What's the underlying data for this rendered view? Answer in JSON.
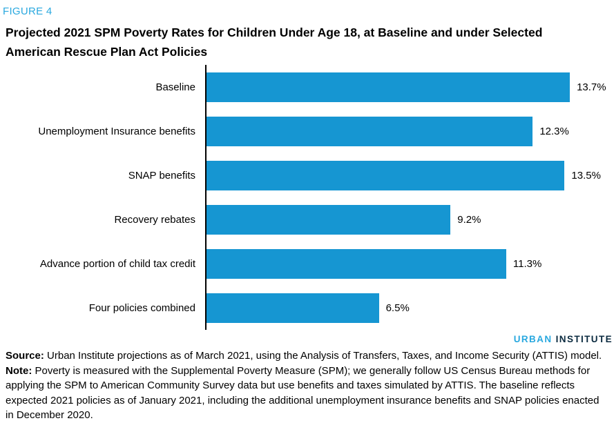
{
  "figure_label": "FIGURE 4",
  "title_lines": [
    "Projected 2021 SPM Poverty Rates for Children Under Age 18, at Baseline and under Selected",
    "American Rescue Plan Act Policies"
  ],
  "chart_data": {
    "type": "bar",
    "orientation": "horizontal",
    "title": "Projected 2021 SPM Poverty Rates for Children Under Age 18, at Baseline and under Selected American Rescue Plan Act Policies",
    "categories": [
      "Baseline",
      "Unemployment Insurance benefits",
      "SNAP benefits",
      "Recovery rebates",
      "Advance portion of child tax credit",
      "Four policies combined"
    ],
    "values": [
      13.7,
      12.3,
      13.5,
      9.2,
      11.3,
      6.5
    ],
    "value_labels": [
      "13.7%",
      "12.3%",
      "13.5%",
      "9.2%",
      "11.3%",
      "6.5%"
    ],
    "xlabel": "",
    "ylabel": "",
    "xlim": [
      0,
      15.4
    ],
    "grid": false,
    "legend": false,
    "bar_color": "#1696d2",
    "axis_color": "#000000",
    "data_labels_position": "right-of-bar"
  },
  "logo": {
    "part1": "URBAN",
    "part2": "INSTITUTE"
  },
  "footer": {
    "source_label": "Source:",
    "source_text": " Urban Institute projections as of March 2021, using the Analysis of Transfers, Taxes, and Income Security (ATTIS) model.",
    "note_label": "Note:",
    "note_text": " Poverty is measured with the Supplemental Poverty Measure (SPM); we generally follow US Census Bureau methods for applying the SPM to American Community Survey data but use benefits and taxes simulated by ATTIS. The baseline reflects expected 2021 policies as of January 2021, including the additional unemployment insurance benefits and SNAP policies enacted in December 2020."
  },
  "colors": {
    "bar_blue": "#1696d2",
    "figure_label_blue": "#29a8df",
    "logo_urban_blue": "#29a8df",
    "logo_institute_navy": "#0a2a3f",
    "text_black": "#000000",
    "background": "#ffffff"
  }
}
